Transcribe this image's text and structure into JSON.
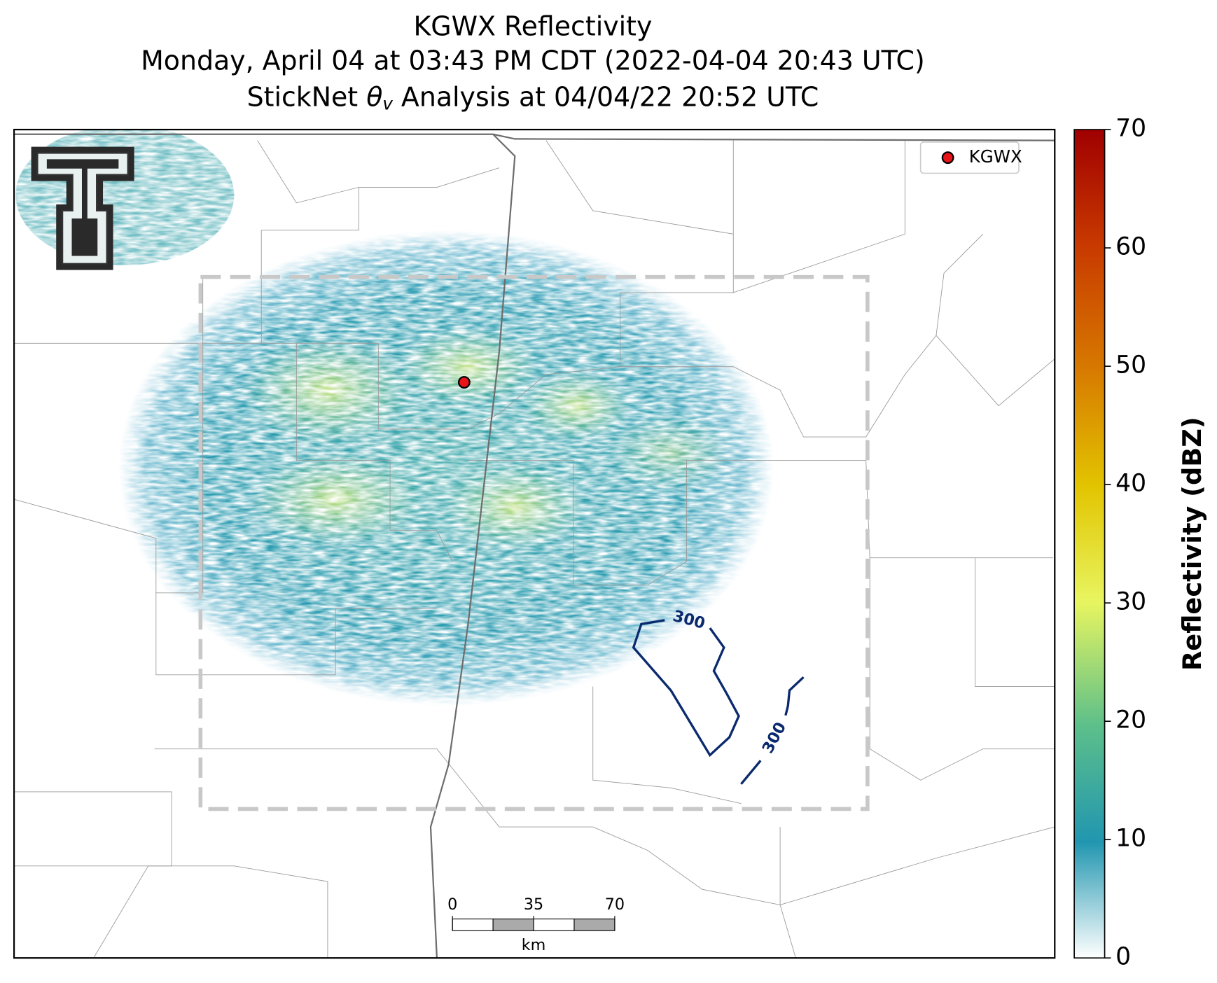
{
  "title": {
    "line1": "KGWX Reflectivity",
    "line2": "Monday, April 04 at 03:43 PM CDT (2022-04-04 20:43 UTC)",
    "line3": {
      "prefix": "StickNet",
      "symbol": "θ",
      "subscript": "v",
      "suffix": "Analysis at 04/04/22 20:52 UTC"
    }
  },
  "legend": {
    "label": "KGWX",
    "color": "#e8141a"
  },
  "contours": [
    {
      "level": 300,
      "color": "#0b2a6e"
    },
    {
      "level": 300,
      "color": "#0b2a6e"
    }
  ],
  "scale_bar": {
    "lim": [
      0,
      70
    ],
    "ticks": [
      0,
      35,
      70
    ],
    "unit": "km"
  },
  "colorbar": {
    "label": "Reflectivity (dBZ)",
    "lim": [
      0,
      70
    ],
    "ticks": [
      0,
      10,
      20,
      30,
      40,
      50,
      60,
      70
    ]
  }
}
